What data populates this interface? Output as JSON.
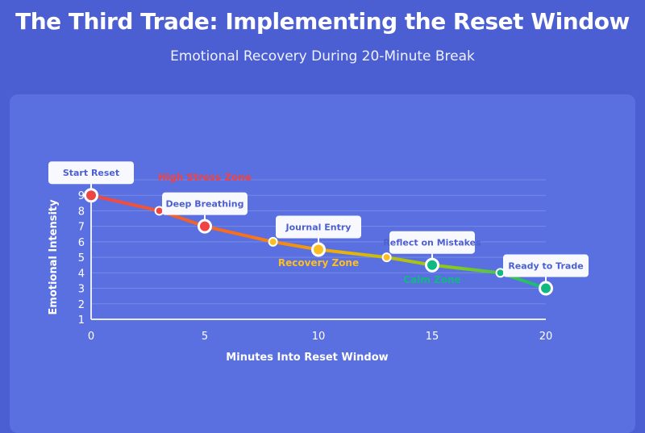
{
  "header": {
    "title": "The Third Trade: Implementing the Reset Window",
    "subtitle": "Emotional Recovery During 20-Minute Break"
  },
  "chart_data": {
    "type": "line",
    "xlabel": "Minutes Into Reset Window",
    "ylabel": "Emotional Intensity",
    "xlim": [
      0,
      20
    ],
    "ylim": [
      1,
      10
    ],
    "xticks": [
      0,
      5,
      10,
      15,
      20
    ],
    "yticks": [
      1,
      2,
      3,
      4,
      5,
      6,
      7,
      8,
      9
    ],
    "grid": true,
    "x": [
      0,
      3,
      5,
      8,
      10,
      13,
      15,
      18,
      20
    ],
    "y": [
      9,
      8,
      7,
      6,
      5.5,
      5,
      4.5,
      4,
      3
    ],
    "point_colors": [
      "#ef4444",
      "#ef4444",
      "#ef4444",
      "#fbbf24",
      "#fbbf24",
      "#fbbf24",
      "#10b981",
      "#10b981",
      "#10b981"
    ],
    "major_points": [
      0,
      5,
      10,
      15,
      20
    ],
    "annotations": [
      {
        "x": 0,
        "y": 9,
        "text": "Start Reset"
      },
      {
        "x": 5,
        "y": 7,
        "text": "Deep Breathing"
      },
      {
        "x": 10,
        "y": 5.5,
        "text": "Journal Entry"
      },
      {
        "x": 15,
        "y": 4.5,
        "text": "Reflect on Mistakes"
      },
      {
        "x": 20,
        "y": 3,
        "text": "Ready to Trade"
      }
    ],
    "zones": [
      {
        "text": "High Stress Zone",
        "x": 5,
        "y": 8.6,
        "color": "#ef4444"
      },
      {
        "text": "Recovery Zone",
        "x": 10,
        "y": 5.9,
        "color": "#fbbf24"
      },
      {
        "text": "Calm Zone",
        "x": 15,
        "y": 3.6,
        "color": "#10b981"
      }
    ]
  }
}
